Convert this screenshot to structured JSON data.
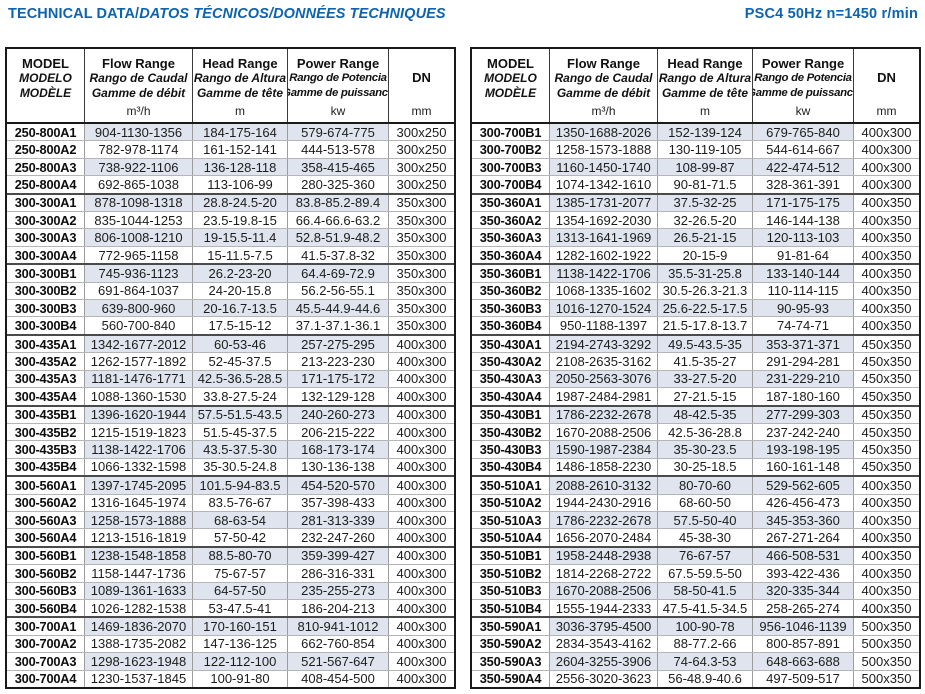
{
  "page": {
    "title_bold": "TECHNICAL DATA/",
    "title_italic": "DATOS TÉCNICOS/DONNÉES TECHNIQUES",
    "spec": "PSC4 50Hz n=1450 r/min"
  },
  "colors": {
    "accent_blue": "#0d63af",
    "row_shade": "#dfe4ee",
    "border_dark": "#1a1a1a"
  },
  "header": {
    "model_lines": [
      "MODEL",
      "MODELO",
      "MODÈLE"
    ],
    "columns": [
      {
        "name": "Flow Range",
        "line2": "Rango de Caudal",
        "line3": "Gamme de débit",
        "unit": "m³/h"
      },
      {
        "name": "Head Range",
        "line2": "Rango de Altura",
        "line3": "Gamme de tête",
        "unit": "m"
      },
      {
        "name": "Power Range",
        "line2": "Rango de Potencia",
        "line3": "Gamme de puissance",
        "unit": "kw"
      },
      {
        "name": "DN",
        "unit": "mm"
      }
    ]
  },
  "tables": {
    "left": {
      "rows": [
        [
          "250-800A1",
          "904-1130-1356",
          "184-175-164",
          "579-674-775",
          "300x250"
        ],
        [
          "250-800A2",
          "782-978-1174",
          "161-152-141",
          "444-513-578",
          "300x250"
        ],
        [
          "250-800A3",
          "738-922-1106",
          "136-128-118",
          "358-415-465",
          "300x250"
        ],
        [
          "250-800A4",
          "692-865-1038",
          "113-106-99",
          "280-325-360",
          "300x250"
        ],
        [
          "300-300A1",
          "878-1098-1318",
          "28.8-24.5-20",
          "83.8-85.2-89.4",
          "350x300"
        ],
        [
          "300-300A2",
          "835-1044-1253",
          "23.5-19.8-15",
          "66.4-66.6-63.2",
          "350x300"
        ],
        [
          "300-300A3",
          "806-1008-1210",
          "19-15.5-11.4",
          "52.8-51.9-48.2",
          "350x300"
        ],
        [
          "300-300A4",
          "772-965-1158",
          "15-11.5-7.5",
          "41.5-37.8-32",
          "350x300"
        ],
        [
          "300-300B1",
          "745-936-1123",
          "26.2-23-20",
          "64.4-69-72.9",
          "350x300"
        ],
        [
          "300-300B2",
          "691-864-1037",
          "24-20-15.8",
          "56.2-56-55.1",
          "350x300"
        ],
        [
          "300-300B3",
          "639-800-960",
          "20-16.7-13.5",
          "45.5-44.9-44.6",
          "350x300"
        ],
        [
          "300-300B4",
          "560-700-840",
          "17.5-15-12",
          "37.1-37.1-36.1",
          "350x300"
        ],
        [
          "300-435A1",
          "1342-1677-2012",
          "60-53-46",
          "257-275-295",
          "400x300"
        ],
        [
          "300-435A2",
          "1262-1577-1892",
          "52-45-37.5",
          "213-223-230",
          "400x300"
        ],
        [
          "300-435A3",
          "1181-1476-1771",
          "42.5-36.5-28.5",
          "171-175-172",
          "400x300"
        ],
        [
          "300-435A4",
          "1088-1360-1530",
          "33.8-27.5-24",
          "132-129-128",
          "400x300"
        ],
        [
          "300-435B1",
          "1396-1620-1944",
          "57.5-51.5-43.5",
          "240-260-273",
          "400x300"
        ],
        [
          "300-435B2",
          "1215-1519-1823",
          "51.5-45-37.5",
          "206-215-222",
          "400x300"
        ],
        [
          "300-435B3",
          "1138-1422-1706",
          "43.5-37.5-30",
          "168-173-174",
          "400x300"
        ],
        [
          "300-435B4",
          "1066-1332-1598",
          "35-30.5-24.8",
          "130-136-138",
          "400x300"
        ],
        [
          "300-560A1",
          "1397-1745-2095",
          "101.5-94-83.5",
          "454-520-570",
          "400x300"
        ],
        [
          "300-560A2",
          "1316-1645-1974",
          "83.5-76-67",
          "357-398-433",
          "400x300"
        ],
        [
          "300-560A3",
          "1258-1573-1888",
          "68-63-54",
          "281-313-339",
          "400x300"
        ],
        [
          "300-560A4",
          "1213-1516-1819",
          "57-50-42",
          "232-247-260",
          "400x300"
        ],
        [
          "300-560B1",
          "1238-1548-1858",
          "88.5-80-70",
          "359-399-427",
          "400x300"
        ],
        [
          "300-560B2",
          "1158-1447-1736",
          "75-67-57",
          "286-316-331",
          "400x300"
        ],
        [
          "300-560B3",
          "1089-1361-1633",
          "64-57-50",
          "235-255-273",
          "400x300"
        ],
        [
          "300-560B4",
          "1026-1282-1538",
          "53-47.5-41",
          "186-204-213",
          "400x300"
        ],
        [
          "300-700A1",
          "1469-1836-2070",
          "170-160-151",
          "810-941-1012",
          "400x300"
        ],
        [
          "300-700A2",
          "1388-1735-2082",
          "147-136-125",
          "662-760-854",
          "400x300"
        ],
        [
          "300-700A3",
          "1298-1623-1948",
          "122-112-100",
          "521-567-647",
          "400x300"
        ],
        [
          "300-700A4",
          "1230-1537-1845",
          "100-91-80",
          "408-454-500",
          "400x300"
        ]
      ]
    },
    "right": {
      "rows": [
        [
          "300-700B1",
          "1350-1688-2026",
          "152-139-124",
          "679-765-840",
          "400x300"
        ],
        [
          "300-700B2",
          "1258-1573-1888",
          "130-119-105",
          "544-614-667",
          "400x300"
        ],
        [
          "300-700B3",
          "1160-1450-1740",
          "108-99-87",
          "422-474-512",
          "400x300"
        ],
        [
          "300-700B4",
          "1074-1342-1610",
          "90-81-71.5",
          "328-361-391",
          "400x300"
        ],
        [
          "350-360A1",
          "1385-1731-2077",
          "37.5-32-25",
          "171-175-175",
          "400x350"
        ],
        [
          "350-360A2",
          "1354-1692-2030",
          "32-26.5-20",
          "146-144-138",
          "400x350"
        ],
        [
          "350-360A3",
          "1313-1641-1969",
          "26.5-21-15",
          "120-113-103",
          "400x350"
        ],
        [
          "350-360A4",
          "1282-1602-1922",
          "20-15-9",
          "91-81-64",
          "400x350"
        ],
        [
          "350-360B1",
          "1138-1422-1706",
          "35.5-31-25.8",
          "133-140-144",
          "400x350"
        ],
        [
          "350-360B2",
          "1068-1335-1602",
          "30.5-26.3-21.3",
          "110-114-115",
          "400x350"
        ],
        [
          "350-360B3",
          "1016-1270-1524",
          "25.6-22.5-17.5",
          "90-95-93",
          "400x350"
        ],
        [
          "350-360B4",
          "950-1188-1397",
          "21.5-17.8-13.7",
          "74-74-71",
          "400x350"
        ],
        [
          "350-430A1",
          "2194-2743-3292",
          "49.5-43.5-35",
          "353-371-371",
          "450x350"
        ],
        [
          "350-430A2",
          "2108-2635-3162",
          "41.5-35-27",
          "291-294-281",
          "450x350"
        ],
        [
          "350-430A3",
          "2050-2563-3076",
          "33-27.5-20",
          "231-229-210",
          "450x350"
        ],
        [
          "350-430A4",
          "1987-2484-2981",
          "27-21.5-15",
          "187-180-160",
          "450x350"
        ],
        [
          "350-430B1",
          "1786-2232-2678",
          "48-42.5-35",
          "277-299-303",
          "450x350"
        ],
        [
          "350-430B2",
          "1670-2088-2506",
          "42.5-36-28.8",
          "237-242-240",
          "450x350"
        ],
        [
          "350-430B3",
          "1590-1987-2384",
          "35-30-23.5",
          "193-198-195",
          "450x350"
        ],
        [
          "350-430B4",
          "1486-1858-2230",
          "30-25-18.5",
          "160-161-148",
          "450x350"
        ],
        [
          "350-510A1",
          "2088-2610-3132",
          "80-70-60",
          "529-562-605",
          "400x350"
        ],
        [
          "350-510A2",
          "1944-2430-2916",
          "68-60-50",
          "426-456-473",
          "400x350"
        ],
        [
          "350-510A3",
          "1786-2232-2678",
          "57.5-50-40",
          "345-353-360",
          "400x350"
        ],
        [
          "350-510A4",
          "1656-2070-2484",
          "45-38-30",
          "267-271-264",
          "400x350"
        ],
        [
          "350-510B1",
          "1958-2448-2938",
          "76-67-57",
          "466-508-531",
          "400x350"
        ],
        [
          "350-510B2",
          "1814-2268-2722",
          "67.5-59.5-50",
          "393-422-436",
          "400x350"
        ],
        [
          "350-510B3",
          "1670-2088-2506",
          "58-50-41.5",
          "320-335-344",
          "400x350"
        ],
        [
          "350-510B4",
          "1555-1944-2333",
          "47.5-41.5-34.5",
          "258-265-274",
          "400x350"
        ],
        [
          "350-590A1",
          "3036-3795-4500",
          "100-90-78",
          "956-1046-1139",
          "500x350"
        ],
        [
          "350-590A2",
          "2834-3543-4162",
          "88-77.2-66",
          "800-857-891",
          "500x350"
        ],
        [
          "350-590A3",
          "2604-3255-3906",
          "74-64.3-53",
          "648-663-688",
          "500x350"
        ],
        [
          "350-590A4",
          "2556-3020-3623",
          "56-48.9-40.6",
          "497-509-517",
          "500x350"
        ]
      ]
    }
  }
}
